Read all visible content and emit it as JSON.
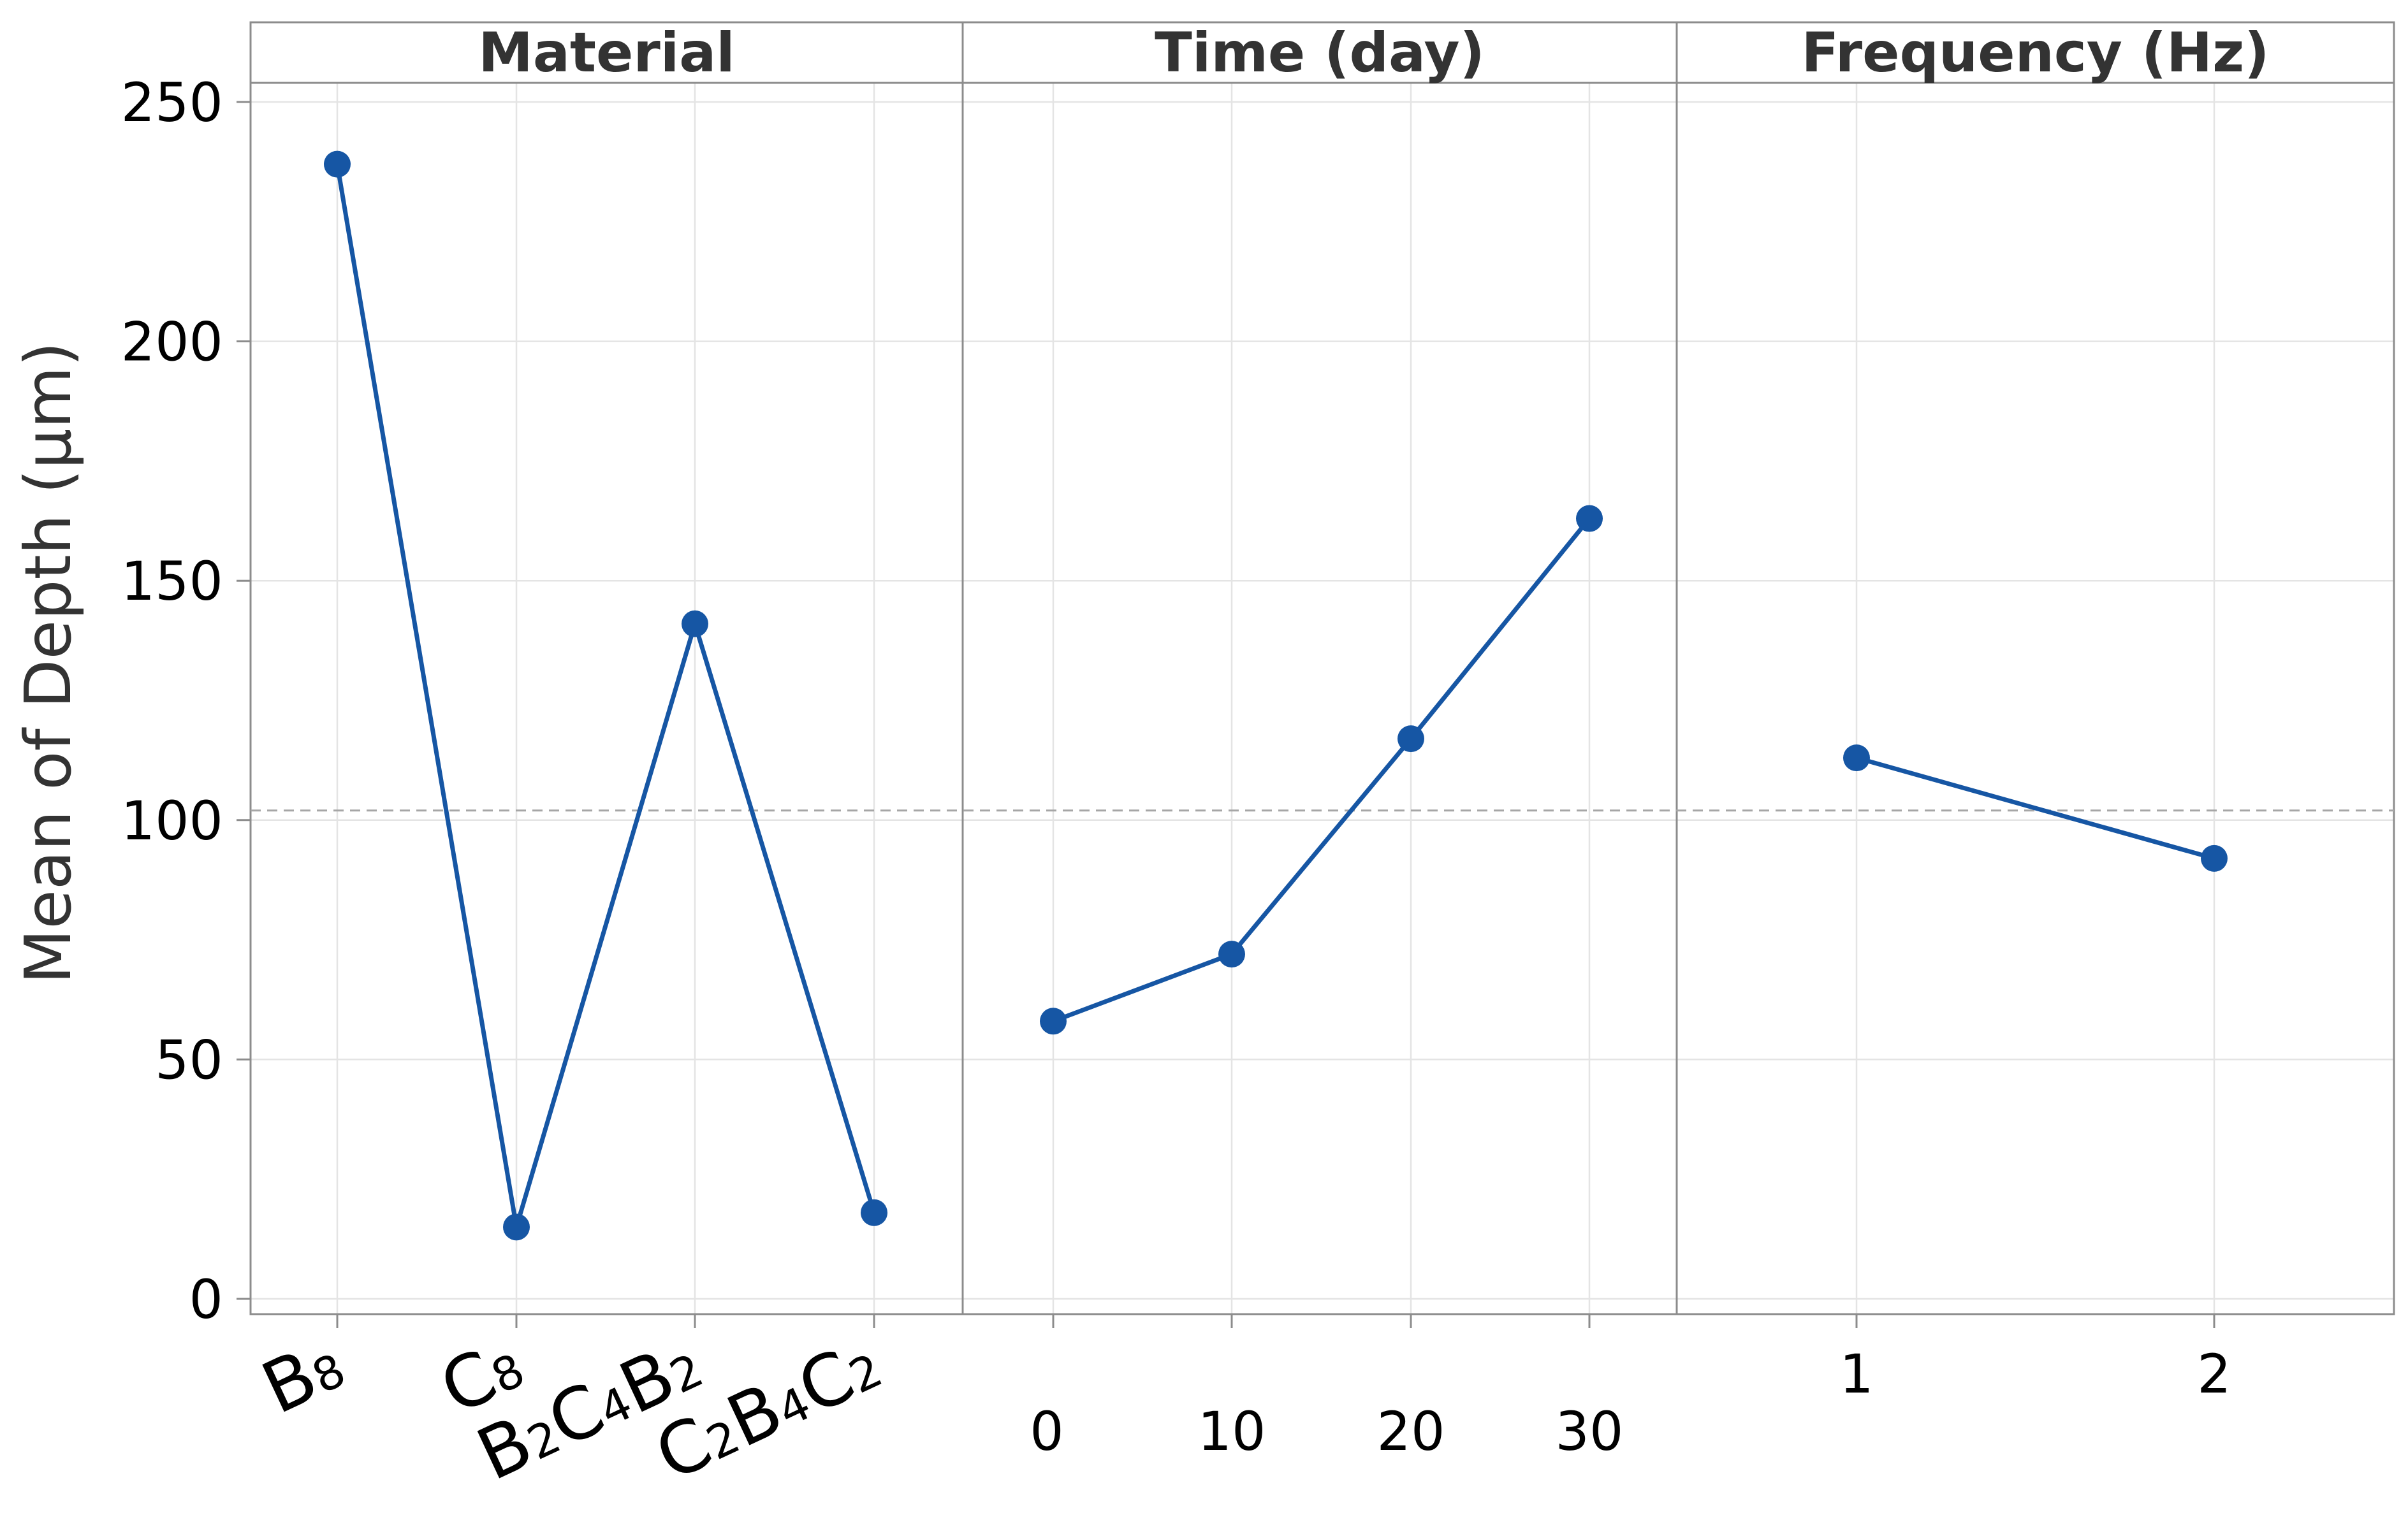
{
  "chart_data": {
    "type": "line",
    "ylabel": "Mean of Depth (µm)",
    "ylim": [
      0,
      250
    ],
    "yticks": [
      "0",
      "50",
      "100",
      "150",
      "200",
      "250"
    ],
    "grand_mean": 102,
    "grid": true,
    "panels": [
      {
        "title": "Material",
        "categories": [
          "B8",
          "C8",
          "B2C4B2",
          "C2B4C2"
        ],
        "category_labels": [
          [
            {
              "t": "B",
              "s": false
            },
            {
              "t": "8",
              "s": true
            }
          ],
          [
            {
              "t": "C",
              "s": false
            },
            {
              "t": "8",
              "s": true
            }
          ],
          [
            {
              "t": "B",
              "s": false
            },
            {
              "t": "2",
              "s": true
            },
            {
              "t": "C",
              "s": false
            },
            {
              "t": "4",
              "s": true
            },
            {
              "t": "B",
              "s": false
            },
            {
              "t": "2",
              "s": true
            }
          ],
          [
            {
              "t": "C",
              "s": false
            },
            {
              "t": "2",
              "s": true
            },
            {
              "t": "B",
              "s": false
            },
            {
              "t": "4",
              "s": true
            },
            {
              "t": "C",
              "s": false
            },
            {
              "t": "2",
              "s": true
            }
          ]
        ],
        "values": [
          237,
          15,
          141,
          18
        ]
      },
      {
        "title": "Time (day)",
        "categories": [
          "0",
          "10",
          "20",
          "30"
        ],
        "values": [
          58,
          72,
          117,
          163
        ]
      },
      {
        "title": "Frequency (Hz)",
        "categories": [
          "1",
          "2"
        ],
        "values": [
          113,
          92
        ]
      }
    ],
    "colors": {
      "line": "#1656a4",
      "marker": "#1656a4",
      "grid": "#e4e4e4",
      "frame": "#8c8c8c",
      "mean_line": "#a6a6a6"
    }
  }
}
